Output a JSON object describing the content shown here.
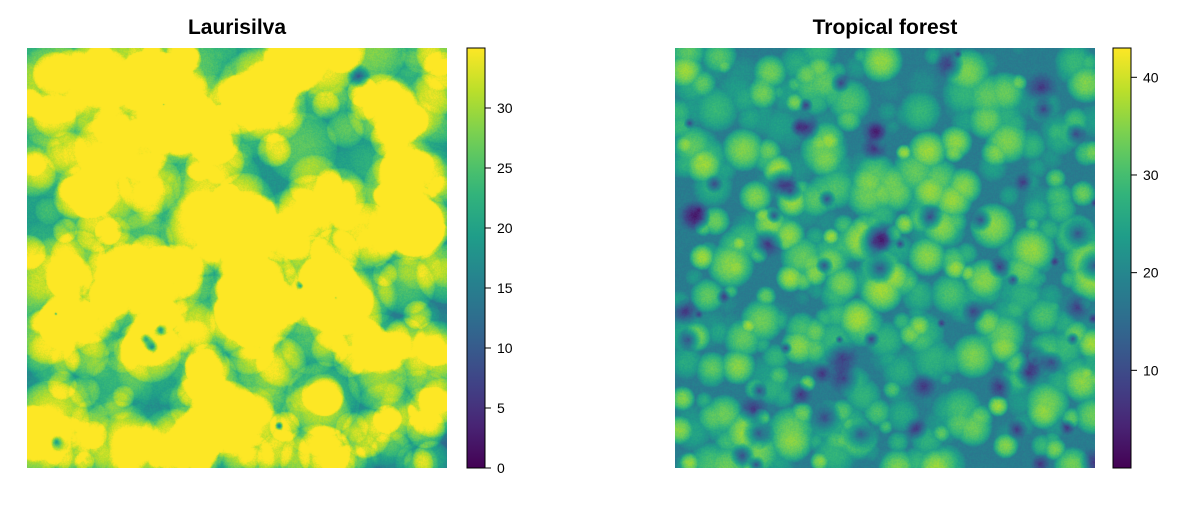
{
  "chart_data": [
    {
      "type": "heatmap",
      "title": "Laurisilva",
      "colormap": "viridis",
      "zlim": [
        0,
        35
      ],
      "colorbar_ticks": [
        "0",
        "5",
        "10",
        "15",
        "20",
        "25",
        "30"
      ],
      "colorbar_tick_values": [
        0,
        5,
        10,
        15,
        20,
        25,
        30
      ]
    },
    {
      "type": "heatmap",
      "title": "Tropical forest",
      "colormap": "viridis",
      "zlim": [
        0,
        43
      ],
      "colorbar_ticks": [
        "10",
        "20",
        "30",
        "40"
      ],
      "colorbar_tick_values": [
        10,
        20,
        30,
        40
      ]
    }
  ],
  "colors": {
    "viridis": [
      "#440154",
      "#482878",
      "#3e4989",
      "#31688e",
      "#26828e",
      "#1f9e89",
      "#35b779",
      "#6ece58",
      "#b5de2b",
      "#fde725"
    ]
  }
}
